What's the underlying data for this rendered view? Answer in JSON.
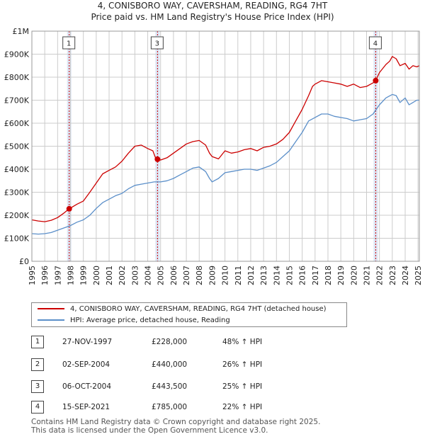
{
  "title_line1": "4, CONISBORO WAY, CAVERSHAM, READING, RG4 7HT",
  "title_line2": "Price paid vs. HM Land Registry's House Price Index (HPI)",
  "colors": {
    "property": "#cc0000",
    "hpi": "#5b8fc9",
    "marker_band": "#dde6f5",
    "grid": "#cccccc"
  },
  "chart_data": {
    "type": "line",
    "ylim": [
      0,
      1000000
    ],
    "xlim": [
      1995.0,
      2025.1
    ],
    "y_ticks": [
      {
        "value": 0,
        "label": "£0"
      },
      {
        "value": 100000,
        "label": "£100K"
      },
      {
        "value": 200000,
        "label": "£200K"
      },
      {
        "value": 300000,
        "label": "£300K"
      },
      {
        "value": 400000,
        "label": "£400K"
      },
      {
        "value": 500000,
        "label": "£500K"
      },
      {
        "value": 600000,
        "label": "£600K"
      },
      {
        "value": 700000,
        "label": "£700K"
      },
      {
        "value": 800000,
        "label": "£800K"
      },
      {
        "value": 900000,
        "label": "£900K"
      },
      {
        "value": 1000000,
        "label": "£1M"
      }
    ],
    "x_ticks": [
      "1995",
      "1996",
      "1997",
      "1998",
      "1999",
      "2000",
      "2001",
      "2002",
      "2003",
      "2004",
      "2005",
      "2006",
      "2007",
      "2008",
      "2009",
      "2010",
      "2011",
      "2012",
      "2013",
      "2014",
      "2015",
      "2016",
      "2017",
      "2018",
      "2019",
      "2020",
      "2021",
      "2022",
      "2023",
      "2024",
      "2025"
    ],
    "grid": true,
    "series": [
      {
        "name": "4, CONISBORO WAY, CAVERSHAM, READING, RG4 7HT (detached house)",
        "x": [
          1995.0,
          1995.5,
          1996.0,
          1996.5,
          1997.0,
          1997.5,
          1997.9,
          1998.5,
          1999.0,
          1999.5,
          2000.0,
          2000.5,
          2001.0,
          2001.5,
          2002.0,
          2002.5,
          2003.0,
          2003.5,
          2004.0,
          2004.4,
          2004.67,
          2004.76,
          2005.0,
          2005.5,
          2006.0,
          2006.5,
          2007.0,
          2007.5,
          2008.0,
          2008.5,
          2008.8,
          2009.0,
          2009.5,
          2010.0,
          2010.5,
          2011.0,
          2011.5,
          2012.0,
          2012.5,
          2013.0,
          2013.5,
          2014.0,
          2014.5,
          2015.0,
          2015.5,
          2016.0,
          2016.5,
          2016.8,
          2017.0,
          2017.5,
          2018.0,
          2018.5,
          2019.0,
          2019.5,
          2020.0,
          2020.5,
          2021.0,
          2021.5,
          2021.71,
          2022.0,
          2022.5,
          2022.8,
          2023.0,
          2023.3,
          2023.6,
          2024.0,
          2024.3,
          2024.6,
          2024.9,
          2025.1
        ],
        "y": [
          180000,
          175000,
          172000,
          178000,
          190000,
          210000,
          228000,
          248000,
          262000,
          300000,
          340000,
          380000,
          395000,
          410000,
          435000,
          470000,
          500000,
          505000,
          490000,
          480000,
          440000,
          443500,
          440000,
          450000,
          470000,
          490000,
          510000,
          520000,
          525000,
          505000,
          470000,
          455000,
          445000,
          480000,
          470000,
          475000,
          485000,
          490000,
          480000,
          495000,
          500000,
          510000,
          530000,
          560000,
          610000,
          660000,
          720000,
          760000,
          770000,
          785000,
          780000,
          775000,
          770000,
          760000,
          770000,
          755000,
          760000,
          775000,
          785000,
          820000,
          855000,
          870000,
          890000,
          880000,
          850000,
          860000,
          835000,
          850000,
          845000,
          850000
        ]
      },
      {
        "name": "HPI: Average price, detached house, Reading",
        "x": [
          1995.0,
          1995.5,
          1996.0,
          1996.5,
          1997.0,
          1997.5,
          1998.0,
          1998.5,
          1999.0,
          1999.5,
          2000.0,
          2000.5,
          2001.0,
          2001.5,
          2002.0,
          2002.5,
          2003.0,
          2003.5,
          2004.0,
          2004.5,
          2005.0,
          2005.5,
          2006.0,
          2006.5,
          2007.0,
          2007.5,
          2008.0,
          2008.5,
          2008.8,
          2009.0,
          2009.5,
          2010.0,
          2010.5,
          2011.0,
          2011.5,
          2012.0,
          2012.5,
          2013.0,
          2013.5,
          2014.0,
          2014.5,
          2015.0,
          2015.5,
          2016.0,
          2016.5,
          2017.0,
          2017.5,
          2018.0,
          2018.5,
          2019.0,
          2019.5,
          2020.0,
          2020.5,
          2021.0,
          2021.5,
          2022.0,
          2022.5,
          2023.0,
          2023.3,
          2023.6,
          2024.0,
          2024.3,
          2024.6,
          2024.9,
          2025.1
        ],
        "y": [
          120000,
          118000,
          120000,
          125000,
          135000,
          145000,
          155000,
          170000,
          180000,
          200000,
          230000,
          255000,
          270000,
          285000,
          295000,
          315000,
          330000,
          335000,
          340000,
          345000,
          345000,
          350000,
          360000,
          375000,
          390000,
          405000,
          410000,
          390000,
          360000,
          345000,
          360000,
          385000,
          390000,
          395000,
          400000,
          400000,
          395000,
          405000,
          415000,
          430000,
          455000,
          480000,
          520000,
          560000,
          610000,
          625000,
          640000,
          640000,
          630000,
          625000,
          620000,
          610000,
          615000,
          620000,
          640000,
          680000,
          710000,
          725000,
          720000,
          690000,
          710000,
          680000,
          690000,
          700000,
          700000
        ]
      }
    ],
    "markers": [
      {
        "label": "1",
        "x": 1997.9,
        "y": 228000
      },
      {
        "label": "3",
        "x": 2004.76,
        "y": 443500
      },
      {
        "label": "4",
        "x": 2021.71,
        "y": 785000
      }
    ],
    "marker_labels_hidden_overlap": [
      "2"
    ]
  },
  "legend": {
    "property_label": "4, CONISBORO WAY, CAVERSHAM, READING, RG4 7HT (detached house)",
    "hpi_label": "HPI: Average price, detached house, Reading"
  },
  "transactions": [
    {
      "num": "1",
      "date": "27-NOV-1997",
      "price": "£228,000",
      "hpi": "48% ↑ HPI"
    },
    {
      "num": "2",
      "date": "02-SEP-2004",
      "price": "£440,000",
      "hpi": "26% ↑ HPI"
    },
    {
      "num": "3",
      "date": "06-OCT-2004",
      "price": "£443,500",
      "hpi": "25% ↑ HPI"
    },
    {
      "num": "4",
      "date": "15-SEP-2021",
      "price": "£785,000",
      "hpi": "22% ↑ HPI"
    }
  ],
  "footer_line1": "Contains HM Land Registry data © Crown copyright and database right 2025.",
  "footer_line2": "This data is licensed under the Open Government Licence v3.0."
}
